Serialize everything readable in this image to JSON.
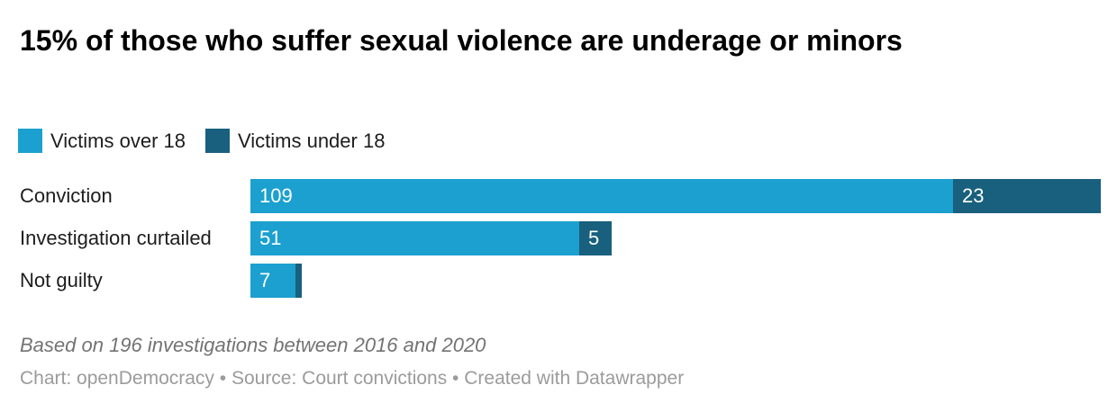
{
  "title": "15% of those who suffer sexual violence are underage or minors",
  "legend": {
    "items": [
      {
        "label": "Victims over 18",
        "color": "#1ca0cf"
      },
      {
        "label": "Victims under 18",
        "color": "#18607d"
      }
    ]
  },
  "colors": {
    "over_18": "#1ca0cf",
    "under_18": "#18607d",
    "value_label_text": "#ffffff"
  },
  "chart_data": {
    "type": "bar",
    "orientation": "horizontal",
    "stacked": true,
    "title": "15% of those who suffer sexual violence are underage or minors",
    "categories": [
      "Conviction",
      "Investigation curtailed",
      "Not guilty"
    ],
    "series": [
      {
        "name": "Victims over 18",
        "color": "#1ca0cf",
        "values": [
          109,
          51,
          7
        ],
        "labels": [
          "109",
          "51",
          "7"
        ]
      },
      {
        "name": "Victims under 18",
        "color": "#18607d",
        "values": [
          23,
          5,
          1
        ],
        "labels": [
          "23",
          "5",
          ""
        ]
      }
    ],
    "xlim": [
      0,
      132
    ],
    "grid": false,
    "axis_labels_visible": false,
    "legend_position": "top",
    "totals": {
      "Conviction": 132,
      "Investigation curtailed": 56,
      "Not guilty": 8,
      "all": 196
    }
  },
  "note": "Based on 196 investigations between 2016 and 2020",
  "attribution": "Chart: openDemocracy • Source: Court convictions • Created with Datawrapper"
}
